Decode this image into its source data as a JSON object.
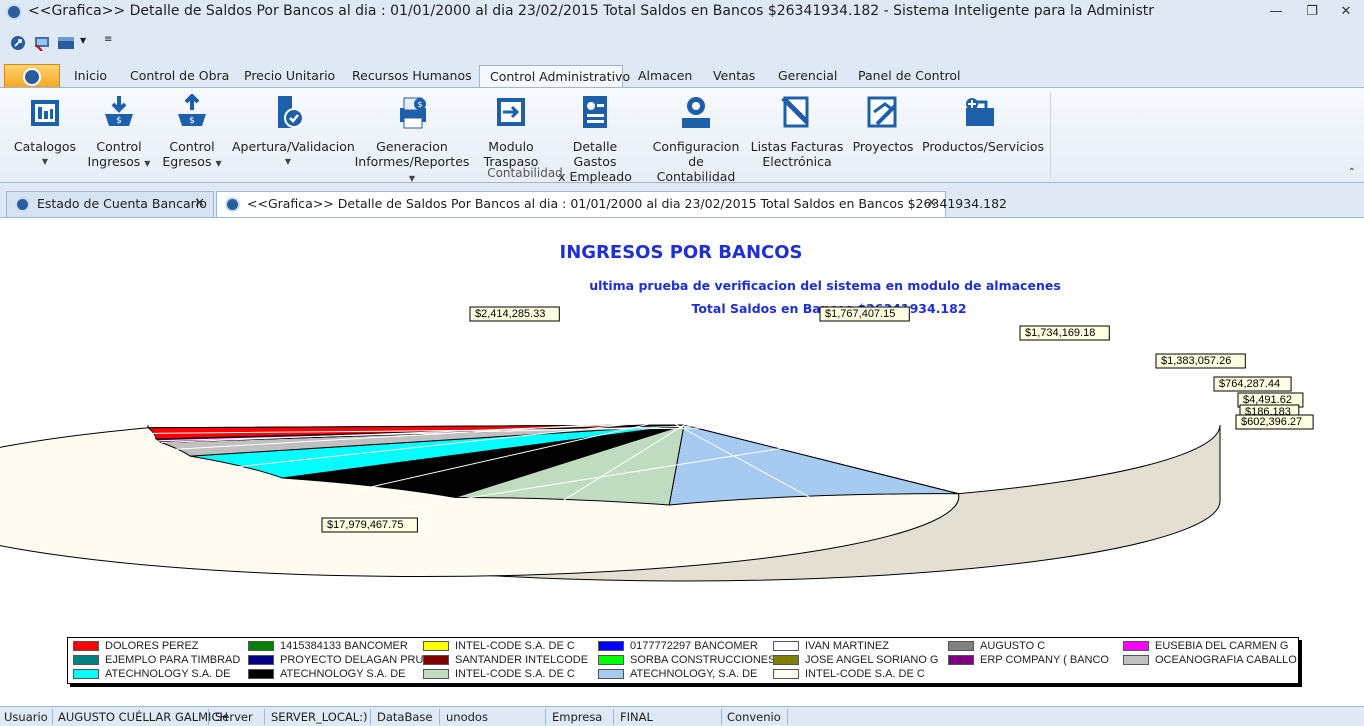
{
  "window": {
    "title": "<<Grafica>> Detalle de Saldos Por Bancos al dia : 01/01/2000 al dia 23/02/2015   Total Saldos en Bancos  $26341934.182  - Sistema Inteligente para la Administr",
    "controls": [
      "minimize",
      "restore",
      "close"
    ]
  },
  "quick_access": [
    "pin-icon",
    "screen-icon",
    "layout-icon",
    "dropdown-icon",
    "customize-icon"
  ],
  "ribbon_tabs": [
    "Inicio",
    "Control de Obra",
    "Precio Unitario",
    "Recursos Humanos",
    "Control Administrativo",
    "Almacen",
    "Ventas",
    "Gerencial",
    "Panel de Control"
  ],
  "active_tab": "Control Administrativo",
  "ribbon": {
    "group_label": "Contabilidad",
    "buttons": [
      {
        "line1": "Catalogos",
        "line2": "",
        "dropdown": true,
        "icon": "catalog-icon"
      },
      {
        "line1": "Control",
        "line2": "Ingresos",
        "dropdown": true,
        "icon": "income-icon"
      },
      {
        "line1": "Control",
        "line2": "Egresos",
        "dropdown": true,
        "icon": "expense-icon"
      },
      {
        "line1": "Apertura/Validacion",
        "line2": "",
        "dropdown": true,
        "icon": "validation-icon"
      },
      {
        "line1": "Generacion",
        "line2": "Informes/Reportes",
        "dropdown": true,
        "icon": "report-icon"
      },
      {
        "line1": "Modulo",
        "line2": "Traspaso",
        "dropdown": false,
        "icon": "transfer-icon"
      },
      {
        "line1": "Detalle Gastos",
        "line2": "x Empleado",
        "dropdown": false,
        "icon": "employee-icon"
      },
      {
        "line1": "Configuracion",
        "line2": "de Contabilidad",
        "dropdown": false,
        "icon": "config-icon"
      },
      {
        "line1": "Listas Facturas",
        "line2": "Electrónica",
        "dropdown": false,
        "icon": "invoice-icon"
      },
      {
        "line1": "Proyectos",
        "line2": "",
        "dropdown": false,
        "icon": "projects-icon"
      },
      {
        "line1": "Productos/Servicios",
        "line2": "",
        "dropdown": false,
        "icon": "products-icon"
      }
    ]
  },
  "document_tabs": [
    {
      "label": "Estado de Cuenta Bancario",
      "active": false
    },
    {
      "label": "<<Grafica>> Detalle de Saldos Por Bancos al dia : 01/01/2000 al dia 23/02/2015  Total Saldos en Bancos  $26341934.182",
      "active": true
    }
  ],
  "chart_data": {
    "type": "pie",
    "title": "INGRESOS POR BANCOS",
    "subtitle": "ultima prueba de verificacion del sistema en modulo de almacenes",
    "subtitle2": "Total Saldos en Bancos  $26341934.182",
    "slices": [
      {
        "name": "DOLORES PEREZ",
        "color": "#ff0000",
        "value": 0
      },
      {
        "name": "1415384133 BANCOMER",
        "color": "#008000",
        "value": 0
      },
      {
        "name": "INTEL-CODE S.A. DE C",
        "color": "#ffff00",
        "value": 0
      },
      {
        "name": "0177772297 BANCOMER",
        "color": "#0000ff",
        "value": 0
      },
      {
        "name": "IVAN MARTINEZ",
        "color": "#ffffff",
        "value": 0
      },
      {
        "name": "AUGUSTO C",
        "color": "#808080",
        "value": 0
      },
      {
        "name": "EUSEBIA DEL CARMEN G",
        "color": "#ff00ff",
        "value": 0
      },
      {
        "name": "EJEMPLO PARA TIMBRAD",
        "color": "#008080",
        "value": 0
      },
      {
        "name": "PROYECTO DELAGAN PRU",
        "color": "#000080",
        "value": 0
      },
      {
        "name": "SANTANDER INTELCODE",
        "color": "#800000",
        "value": 0
      },
      {
        "name": "SORBA CONSTRUCCIONES",
        "color": "#00ff00",
        "value": 0
      },
      {
        "name": "JOSE ANGEL SORIANO G",
        "color": "#808000",
        "value": 0
      },
      {
        "name": "ERP COMPANY ( BANCO",
        "color": "#800080",
        "value": 0
      },
      {
        "name": "OCEANOGRAFIA CABALLO",
        "color": "#c0c0c0",
        "value": 0
      },
      {
        "name": "ATECHNOLOGY S.A. DE",
        "color": "#00ffff",
        "value": 0
      },
      {
        "name": "ATECHNOLOGY S.A. DE",
        "color": "#000000",
        "value": 0
      },
      {
        "name": "INTEL-CODE S.A. DE C",
        "color": "#c0dcc0",
        "value": 0
      },
      {
        "name": "ATECHNOLOGY, S.A. DE",
        "color": "#a6caf0",
        "value": 0
      },
      {
        "name": "INTEL-CODE S.A. DE C",
        "color": "#fffbf0",
        "value": 0
      }
    ],
    "render_slices": [
      {
        "color": "#fffbf0",
        "value": 17979467.75,
        "label": "$17,979,467.75"
      },
      {
        "color": "#a6caf0",
        "value": 2414285.33,
        "label": "$2,414,285.33"
      },
      {
        "color": "#c0dcc0",
        "value": 1767407.15,
        "label": "$1,767,407.15"
      },
      {
        "color": "#000000",
        "value": 1734169.18,
        "label": "$1,734,169.18"
      },
      {
        "color": "#00ffff",
        "value": 1383057.26,
        "label": "$1,383,057.26"
      },
      {
        "color": "#c0c0c0",
        "value": 764287.44,
        "label": "$764,287.44"
      },
      {
        "color": "#808080",
        "value": 4491.62,
        "label": "$4,491.62"
      },
      {
        "color": "#800080",
        "value": 186183.0,
        "label": "$186,183"
      },
      {
        "color": "#ff0000",
        "value": 602396.27,
        "label": "$602,396.27"
      }
    ]
  },
  "statusbar": {
    "usuario_label": "Usuario",
    "usuario": "AUGUSTO CUÉLLAR GALMICH",
    "server_label": "Server",
    "server": "SERVER_LOCAL:)",
    "database_label": "DataBase",
    "database": "unodos",
    "empresa_label": "Empresa",
    "empresa": "FINAL",
    "convenio_label": "Convenio",
    "convenio": ""
  }
}
